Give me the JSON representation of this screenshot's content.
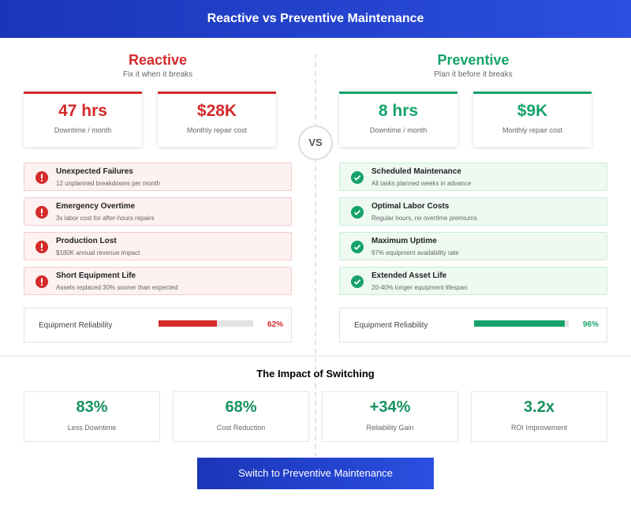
{
  "header": {
    "title": "Reactive vs Preventive Maintenance"
  },
  "vs": "VS",
  "reactive": {
    "title": "Reactive",
    "subtitle": "Fix it when it breaks",
    "stats": [
      {
        "value": "47 hrs",
        "label": "Downtime / month"
      },
      {
        "value": "$28K",
        "label": "Monthly repair cost"
      }
    ],
    "items": [
      {
        "title": "Unexpected Failures",
        "desc": "12 unplanned breakdowns per month"
      },
      {
        "title": "Emergency Overtime",
        "desc": "3x labor cost for after-hours repairs"
      },
      {
        "title": "Production Lost",
        "desc": "$180K annual revenue impact"
      },
      {
        "title": "Short Equipment Life",
        "desc": "Assets replaced 30% sooner than expected"
      }
    ],
    "reliability": {
      "label": "Equipment Reliability",
      "value": 62,
      "value_label": "62%"
    }
  },
  "preventive": {
    "title": "Preventive",
    "subtitle": "Plan it before it breaks",
    "stats": [
      {
        "value": "8 hrs",
        "label": "Downtime / month"
      },
      {
        "value": "$9K",
        "label": "Monthly repair cost"
      }
    ],
    "items": [
      {
        "title": "Scheduled Maintenance",
        "desc": "All tasks planned weeks in advance"
      },
      {
        "title": "Optimal Labor Costs",
        "desc": "Regular hours, no overtime premiums"
      },
      {
        "title": "Maximum Uptime",
        "desc": "97% equipment availability rate"
      },
      {
        "title": "Extended Asset Life",
        "desc": "20-40% longer equipment lifespan"
      }
    ],
    "reliability": {
      "label": "Equipment Reliability",
      "value": 96,
      "value_label": "96%"
    }
  },
  "impact": {
    "title": "The Impact of Switching",
    "cards": [
      {
        "value": "83%",
        "label": "Less Downtime"
      },
      {
        "value": "68%",
        "label": "Cost Reduction"
      },
      {
        "value": "+34%",
        "label": "Reliability Gain"
      },
      {
        "value": "3.2x",
        "label": "ROI Improvement"
      }
    ]
  },
  "button": "Switch to Preventive Maintenance"
}
